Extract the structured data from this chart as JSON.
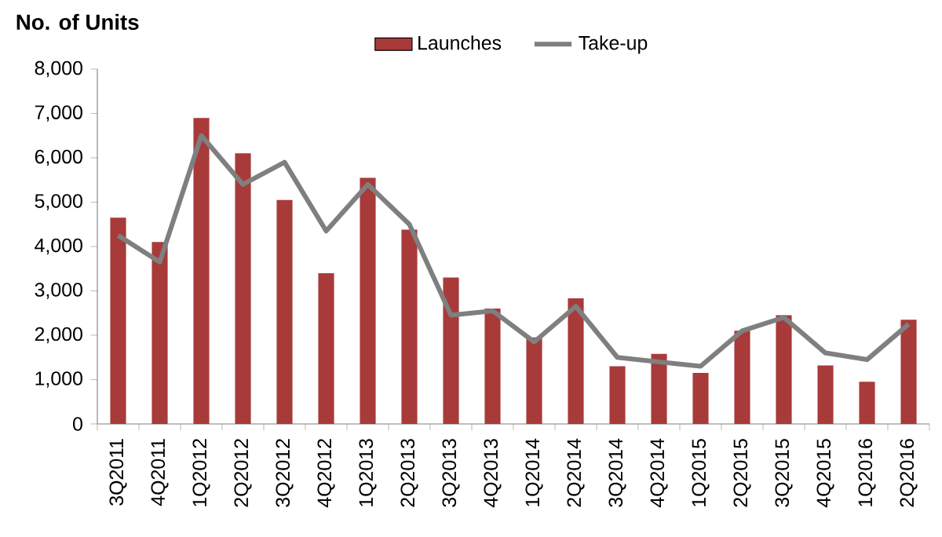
{
  "chart_data": {
    "type": "bar",
    "ylabel": "No. of Units",
    "categories": [
      "3Q2011",
      "4Q2011",
      "1Q2012",
      "2Q2012",
      "3Q2012",
      "4Q2012",
      "1Q2013",
      "2Q2013",
      "3Q2013",
      "4Q2013",
      "1Q2014",
      "2Q2014",
      "3Q2014",
      "4Q2014",
      "1Q2015",
      "2Q2015",
      "3Q2015",
      "4Q2015",
      "1Q2016",
      "2Q2016"
    ],
    "series": [
      {
        "name": "Launches",
        "color": "#a83a3a",
        "values": [
          4650,
          4100,
          6900,
          6100,
          5050,
          3400,
          5550,
          4380,
          3300,
          2600,
          1950,
          2830,
          1300,
          1580,
          1150,
          2100,
          2450,
          1320,
          950,
          2350
        ]
      },
      {
        "name": "Take-up",
        "type": "line",
        "color": "#7f7f7f",
        "values": [
          4250,
          3650,
          6500,
          5400,
          5900,
          4350,
          5400,
          4500,
          2450,
          2550,
          1850,
          2650,
          1500,
          1400,
          1300,
          2100,
          2400,
          1600,
          1450,
          2250
        ]
      }
    ],
    "ylim": [
      0,
      8000
    ],
    "yticks": [
      {
        "value": 0,
        "label": "0"
      },
      {
        "value": 1000,
        "label": "1,000"
      },
      {
        "value": 2000,
        "label": "2,000"
      },
      {
        "value": 3000,
        "label": "3,000"
      },
      {
        "value": 4000,
        "label": "4,000"
      },
      {
        "value": 5000,
        "label": "5,000"
      },
      {
        "value": 6000,
        "label": "6,000"
      },
      {
        "value": 7000,
        "label": "7,000"
      },
      {
        "value": 8000,
        "label": "8,000"
      }
    ],
    "grid": false,
    "legend": "top",
    "marker": "none",
    "line_style": "solid"
  }
}
